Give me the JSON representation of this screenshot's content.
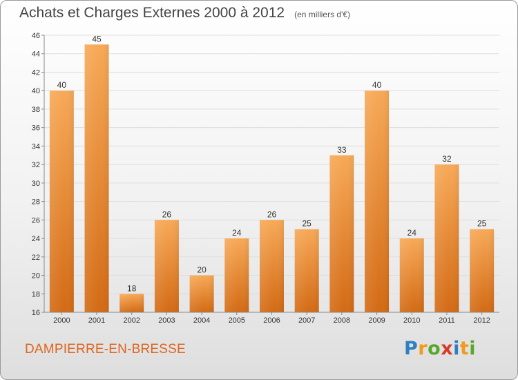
{
  "title": {
    "main": "Achats et Charges Externes 2000 à 2012",
    "unit": "(en milliers d'€)"
  },
  "commune": "DAMPIERRE-EN-BRESSE",
  "logo": {
    "text": "Proxiti"
  },
  "colors": {
    "bar_light": "#f7a957",
    "bar_dark": "#d36a14",
    "grid": "#dddddd",
    "title": "#444444",
    "commune": "#e0641e"
  },
  "chart_data": {
    "type": "bar",
    "categories": [
      "2000",
      "2001",
      "2002",
      "2003",
      "2004",
      "2005",
      "2006",
      "2007",
      "2008",
      "2009",
      "2010",
      "2011",
      "2012"
    ],
    "values": [
      40,
      45,
      18,
      26,
      20,
      24,
      26,
      25,
      33,
      40,
      24,
      32,
      25
    ],
    "ylim": [
      16,
      46
    ],
    "yticks": [
      16,
      18,
      20,
      22,
      24,
      26,
      28,
      30,
      32,
      34,
      36,
      38,
      40,
      42,
      44,
      46
    ],
    "grid": true,
    "data_labels": true
  }
}
